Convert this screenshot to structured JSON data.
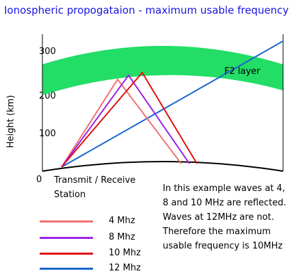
{
  "title": "Ionospheric propogataion - maximum usable frequency",
  "y_axis_label": "Height (km)",
  "y_ticks": [
    "300",
    "200",
    "100",
    "0"
  ],
  "layer_label": "F2 layer",
  "station_label": "Transmit / Receive\nStation",
  "explanation": "In this example waves at 4,\n8 and 10 MHz are reflected.\nWaves at 12MHz are not.\nTherefore the maximum\nusable frequency is 10MHz",
  "colors": {
    "layer": "#22dd66",
    "f4": "#f07070",
    "f8": "#9a22e6",
    "f10": "#e01010",
    "f12": "#1a66cc",
    "title": "#1515e0"
  },
  "legend": [
    {
      "label": "4 Mhz",
      "color": "#f07070"
    },
    {
      "label": "8 Mhz",
      "color": "#9a22e6"
    },
    {
      "label": "10 Mhz",
      "color": "#e01010"
    },
    {
      "label": "12 Mhz",
      "color": "#1a66cc"
    }
  ]
}
